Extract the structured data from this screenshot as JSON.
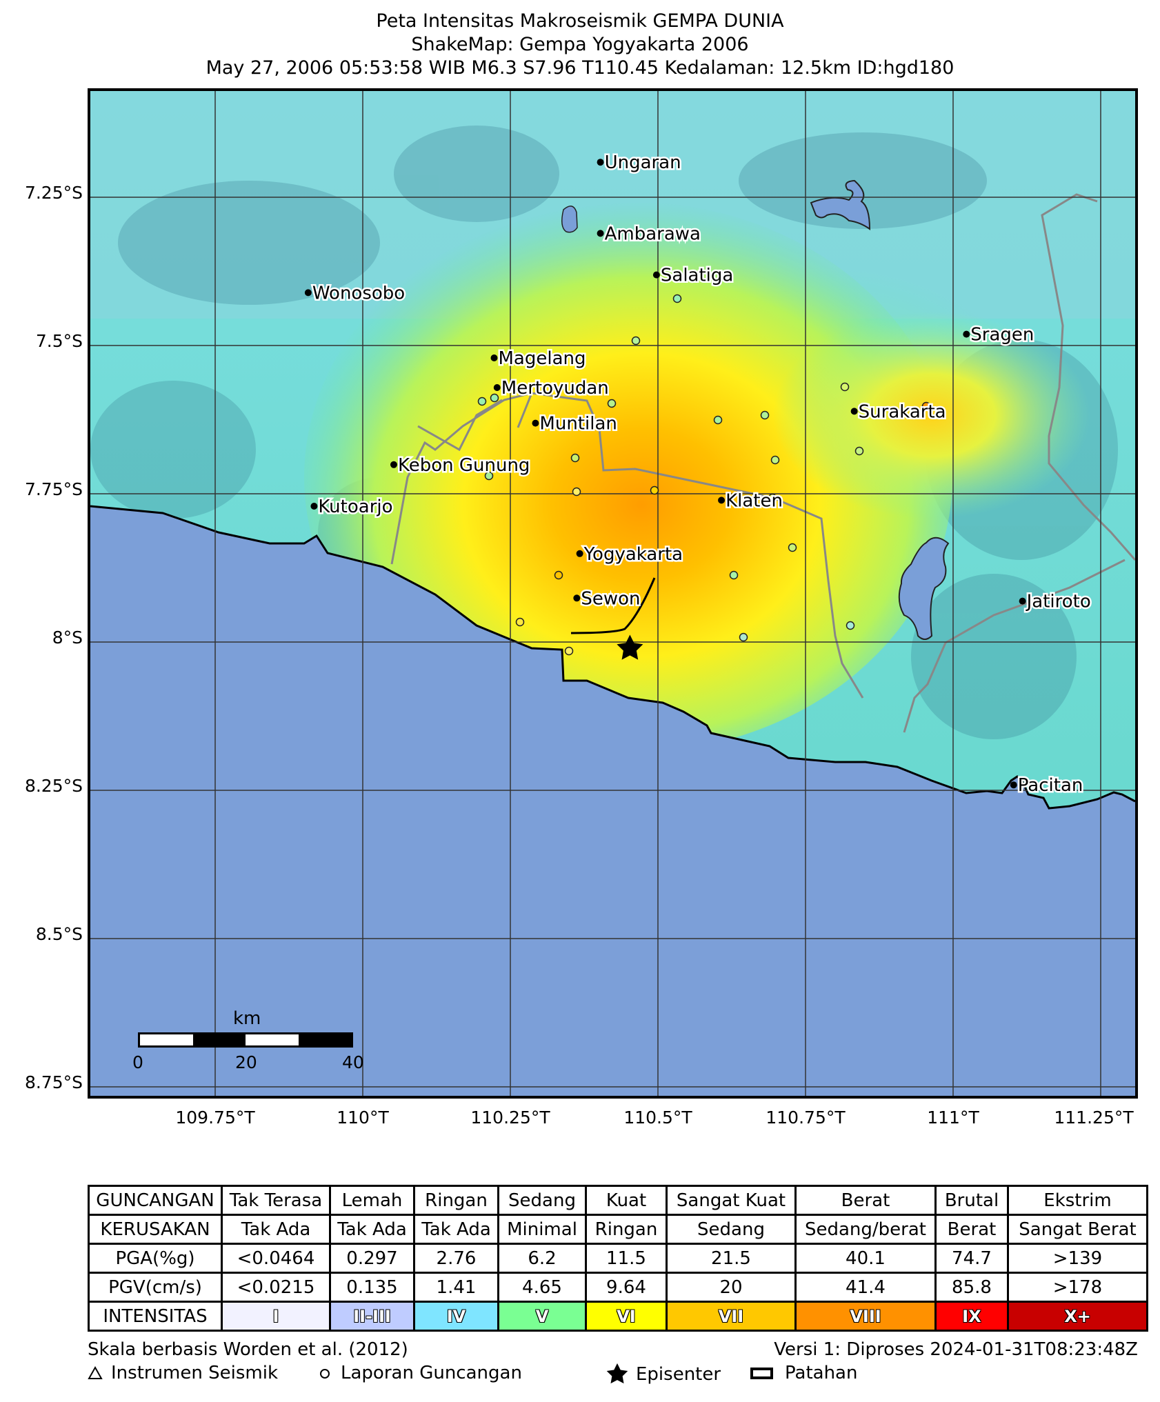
{
  "title": {
    "line1": "Peta Intensitas Makroseismik GEMPA DUNIA",
    "line2": "ShakeMap: Gempa Yogyakarta 2006",
    "line3": "May 27, 2006 05:53:58 WIB M6.3 S7.96 T110.45 Kedalaman: 12.5km ID:hgd180"
  },
  "map": {
    "lat_ticks": [
      "7.25°S",
      "7.5°S",
      "7.75°S",
      "8°S",
      "8.25°S",
      "8.5°S",
      "8.75°S"
    ],
    "lon_ticks": [
      "109.75°T",
      "110°T",
      "110.25°T",
      "110.5°T",
      "110.75°T",
      "111°T",
      "111.25°T"
    ],
    "cities": [
      {
        "name": "Ungaran",
        "lon": 110.4,
        "lat": -7.14
      },
      {
        "name": "Ambarawa",
        "lon": 110.4,
        "lat": -7.26
      },
      {
        "name": "Salatiga",
        "lon": 110.495,
        "lat": -7.33
      },
      {
        "name": "Wonosobo",
        "lon": 109.905,
        "lat": -7.36
      },
      {
        "name": "Sragen",
        "lon": 111.02,
        "lat": -7.43
      },
      {
        "name": "Magelang",
        "lon": 110.22,
        "lat": -7.47
      },
      {
        "name": "Mertoyudan",
        "lon": 110.225,
        "lat": -7.52
      },
      {
        "name": "Surakarta",
        "lon": 110.83,
        "lat": -7.56
      },
      {
        "name": "Muntilan",
        "lon": 110.29,
        "lat": -7.58
      },
      {
        "name": "Kebon Gunung",
        "lon": 110.05,
        "lat": -7.65
      },
      {
        "name": "Klaten",
        "lon": 110.605,
        "lat": -7.71
      },
      {
        "name": "Kutoarjo",
        "lon": 109.915,
        "lat": -7.72
      },
      {
        "name": "Yogyakarta",
        "lon": 110.365,
        "lat": -7.8
      },
      {
        "name": "Sewon",
        "lon": 110.36,
        "lat": -7.875
      },
      {
        "name": "Jatiroto",
        "lon": 111.115,
        "lat": -7.88
      },
      {
        "name": "Pacitan",
        "lon": 111.1,
        "lat": -8.19
      }
    ],
    "epicenter": {
      "lon": 110.45,
      "lat": -7.96
    },
    "scale_bar": {
      "unit": "km",
      "labels": [
        "0",
        "20",
        "40"
      ]
    }
  },
  "legend": {
    "row_headers": [
      "GUNCANGAN",
      "KERUSAKAN",
      "PGA(%g)",
      "PGV(cm/s)",
      "INTENSITAS"
    ],
    "columns": [
      {
        "shaking": "Tak Terasa",
        "damage": "Tak Ada",
        "pga": "<0.0464",
        "pgv": "<0.0215",
        "intensity": "I",
        "color": "#f2f2ff"
      },
      {
        "shaking": "Lemah",
        "damage": "Tak Ada",
        "pga": "0.297",
        "pgv": "0.135",
        "intensity": "II-III",
        "color": "#bfccff"
      },
      {
        "shaking": "Ringan",
        "damage": "Tak Ada",
        "pga": "2.76",
        "pgv": "1.41",
        "intensity": "IV",
        "color": "#7fe5ff"
      },
      {
        "shaking": "Sedang",
        "damage": "Minimal",
        "pga": "6.2",
        "pgv": "4.65",
        "intensity": "V",
        "color": "#7aff93"
      },
      {
        "shaking": "Kuat",
        "damage": "Ringan",
        "pga": "11.5",
        "pgv": "9.64",
        "intensity": "VI",
        "color": "#ffff00"
      },
      {
        "shaking": "Sangat Kuat",
        "damage": "Sedang",
        "pga": "21.5",
        "pgv": "20",
        "intensity": "VII",
        "color": "#ffc800"
      },
      {
        "shaking": "Berat",
        "damage": "Sedang/berat",
        "pga": "40.1",
        "pgv": "41.4",
        "intensity": "VIII",
        "color": "#ff9100"
      },
      {
        "shaking": "Brutal",
        "damage": "Berat",
        "pga": "74.7",
        "pgv": "85.8",
        "intensity": "IX",
        "color": "#ff0000"
      },
      {
        "shaking": "Ekstrim",
        "damage": "Sangat Berat",
        "pga": ">139",
        "pgv": ">178",
        "intensity": "X+",
        "color": "#c80000"
      }
    ]
  },
  "footer": {
    "scale_note": "Skala berbasis Worden et al. (2012)",
    "version": "Versi 1: Diproses 2024-01-31T08:23:48Z",
    "instrument": "Instrumen Seismik",
    "report": "Laporan Guncangan",
    "epicenter": "Episenter",
    "fault": "Patahan"
  }
}
